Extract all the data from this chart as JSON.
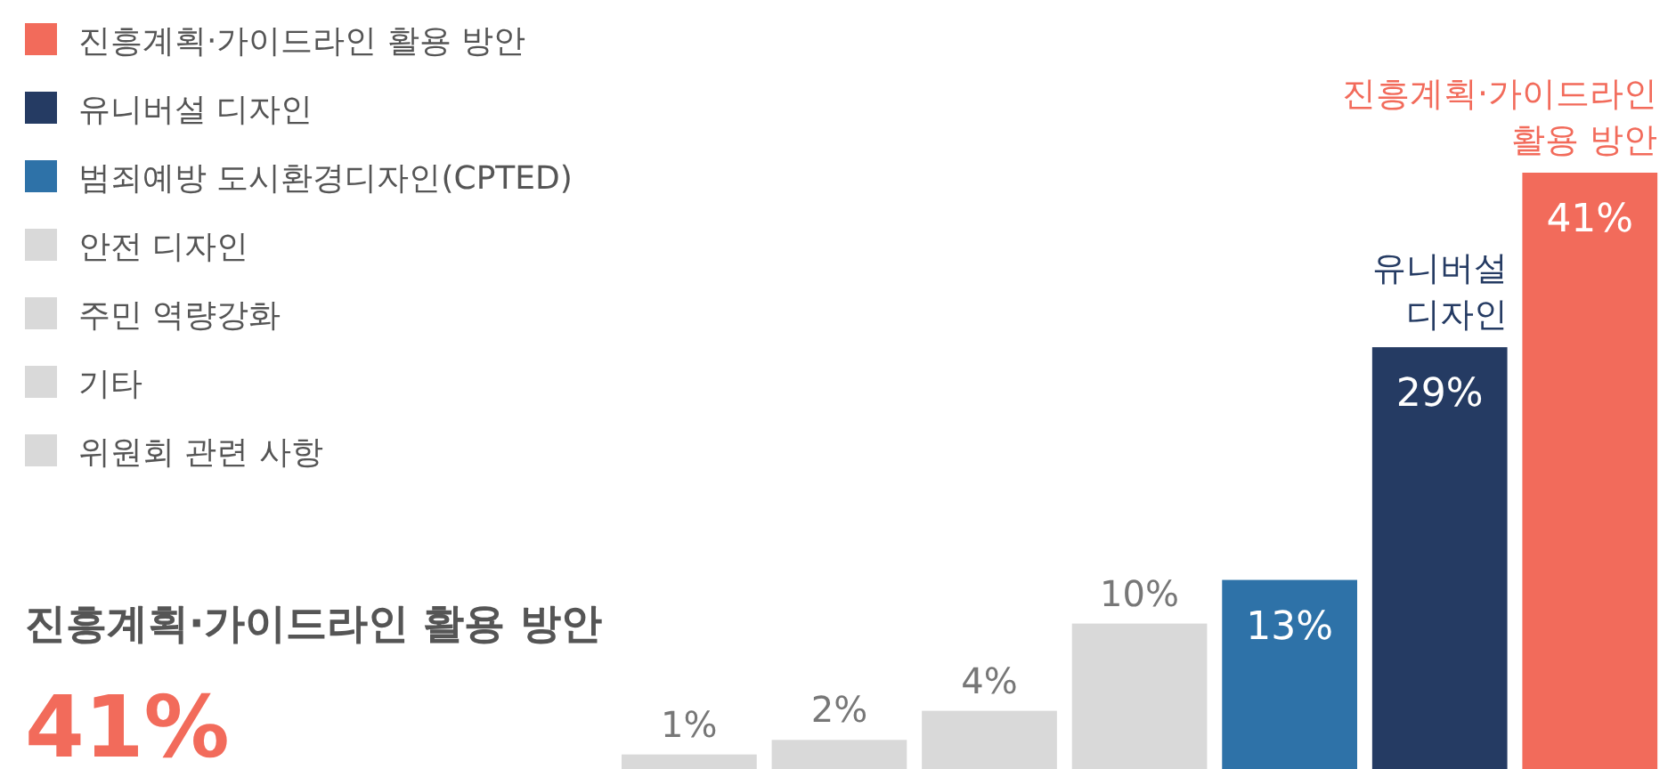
{
  "chart_data": {
    "type": "bar",
    "title": "진흥계획·가이드라인 활용 방안",
    "categories": [
      null,
      null,
      null,
      null,
      null,
      null,
      null
    ],
    "values": [
      1,
      2,
      4,
      10,
      13,
      29,
      41
    ],
    "colors": [
      "#d9d9d9",
      "#d9d9d9",
      "#d9d9d9",
      "#d9d9d9",
      "#2e72a8",
      "#253b63",
      "#f26b5b"
    ],
    "value_labels": [
      "1%",
      "2%",
      "4%",
      "10%",
      "13%",
      "29%",
      "41%"
    ],
    "annotations": [
      "진흥계획·가이드라인 활용 방안",
      "유니버설 디자인",
      "범죄예방 도시환경디자인(CPTED)",
      "안전 디자인",
      "주민 역량강화",
      "기타",
      "위원회 관련 사항",
      "유니버설 디자인",
      "진흥계획·가이드라인 활용 방안",
      "41%"
    ]
  }
}
